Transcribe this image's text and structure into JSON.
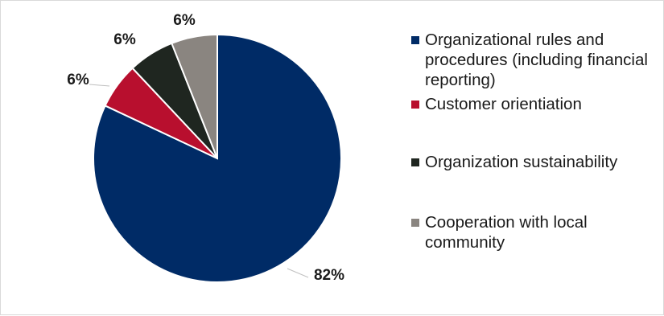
{
  "chart_data": {
    "type": "pie",
    "categories": [
      "Organizational rules and procedures (including financial reporting)",
      "Customer orientiation",
      "Organization sustainability",
      "Cooperation with local community"
    ],
    "values": [
      82,
      6,
      6,
      6
    ],
    "data_labels": [
      "82%",
      "6%",
      "6%",
      "6%"
    ],
    "colors": [
      "#002b66",
      "#b80f2e",
      "#1f2620",
      "#8a8580"
    ],
    "start_angle_deg": 0,
    "direction": "counterclockwise",
    "legend_placement": "right"
  }
}
